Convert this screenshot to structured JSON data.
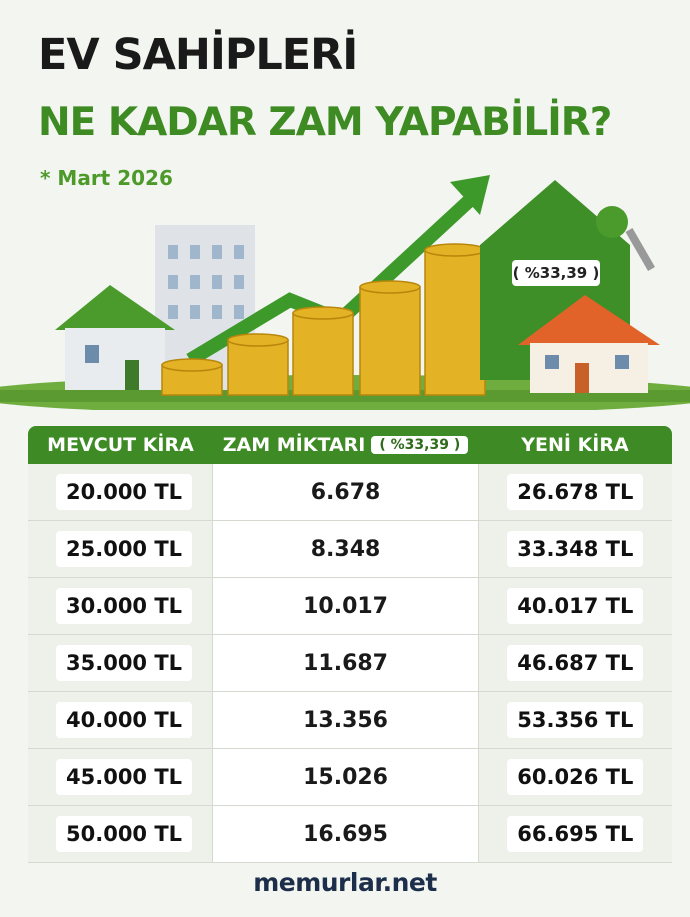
{
  "header": {
    "title_line1": "EV SAHİPLERİ",
    "title_line2": "NE KADAR ZAM YAPABİLİR?",
    "date": "* Mart 2026"
  },
  "illustration": {
    "label": "( %33,39 )"
  },
  "table": {
    "headers": [
      "MEVCUT KİRA",
      "ZAM MİKTARI",
      "YENİ KİRA"
    ],
    "rate": "( %33,39 )",
    "rows": [
      [
        "20.000 TL",
        "6.678",
        "26.678 TL"
      ],
      [
        "25.000 TL",
        "8.348",
        "33.348 TL"
      ],
      [
        "30.000 TL",
        "10.017",
        "40.017 TL"
      ],
      [
        "35.000 TL",
        "11.687",
        "46.687 TL"
      ],
      [
        "40.000 TL",
        "13.356",
        "53.356 TL"
      ],
      [
        "45.000 TL",
        "15.026",
        "60.026 TL"
      ],
      [
        "50.000 TL",
        "16.695",
        "66.695 TL"
      ]
    ]
  },
  "footer": {
    "brand": "memurlar.net"
  }
}
